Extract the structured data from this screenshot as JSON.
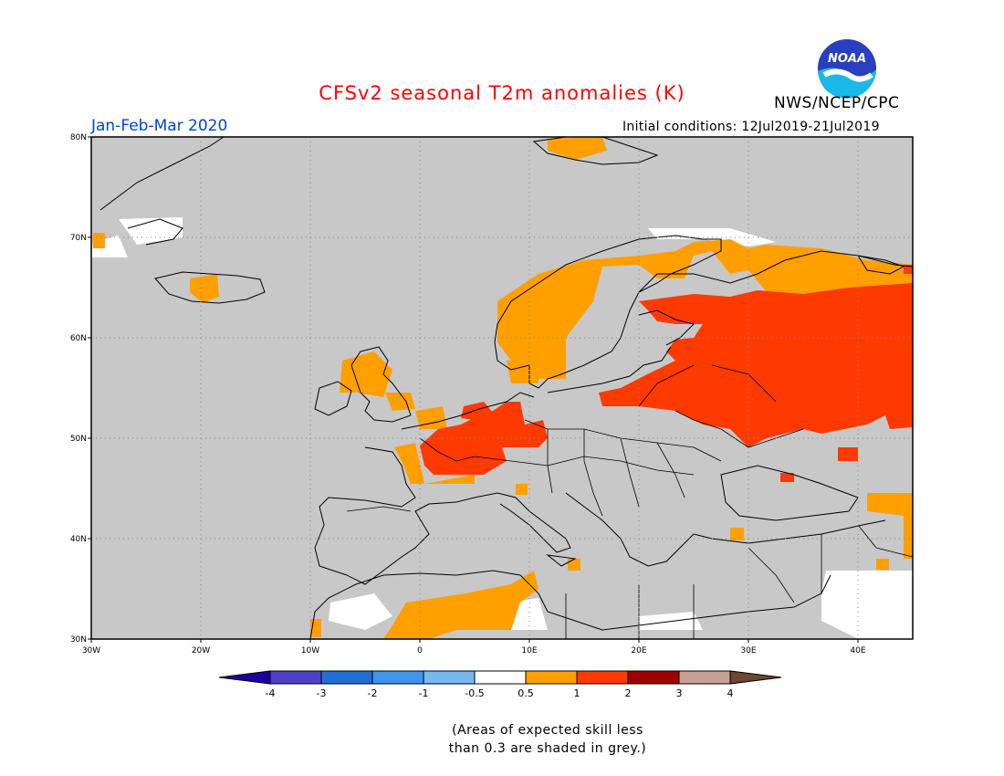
{
  "header": {
    "title": "CFSv2 seasonal T2m anomalies (K)",
    "period": "Jan-Feb-Mar 2020",
    "credit": "NWS/NCEP/CPC",
    "initial_conditions": "Initial conditions: 12Jul2019-21Jul2019",
    "logo_text": "NOAA"
  },
  "colors": {
    "title": "#ff0000",
    "period": "#0044dd",
    "no_skill_grey": "#c8c8c8",
    "sea_grey": "#c8c8c8",
    "border_line": "#000000"
  },
  "map": {
    "lon_range": [
      -30,
      45
    ],
    "lat_range": [
      30,
      80
    ],
    "gridlines": "dotted",
    "lon_ticks": [
      "30W",
      "20W",
      "10W",
      "0",
      "10E",
      "20E",
      "30E",
      "40E"
    ],
    "lat_ticks": [
      "80N",
      "70N",
      "60N",
      "50N",
      "40N",
      "30N"
    ],
    "legend": {
      "bins": [
        {
          "label": "<-4",
          "color": "#1a00a0"
        },
        {
          "label": "-4 to -3",
          "color": "#5040c8"
        },
        {
          "label": "-3 to -2",
          "color": "#1f6fd6"
        },
        {
          "label": "-2 to -1",
          "color": "#3c96ee"
        },
        {
          "label": "-1 to -0.5",
          "color": "#78b8f0"
        },
        {
          "label": "-0.5 to 0.5",
          "color": "#ffffff"
        },
        {
          "label": "0.5 to 1",
          "color": "#ff9f00"
        },
        {
          "label": "1 to 2",
          "color": "#ff3a00"
        },
        {
          "label": "2 to 3",
          "color": "#a00000"
        },
        {
          "label": "3 to 4",
          "color": "#c8a096"
        },
        {
          "label": ">4",
          "color": "#6e4632"
        }
      ],
      "tick_labels": [
        "-4",
        "-3",
        "-2",
        "-1",
        "-0.5",
        "0.5",
        "1",
        "2",
        "3",
        "4"
      ]
    },
    "anomaly_regions": [
      {
        "name": "Western Russia / Baltics",
        "category": "1 to 2"
      },
      {
        "name": "Northern Russia",
        "category": "0.5 to 1"
      },
      {
        "name": "Scandinavia",
        "category": "0.5 to 1"
      },
      {
        "name": "France / Benelux / Germany",
        "category": "1 to 2"
      },
      {
        "name": "British Isles (east)",
        "category": "0.5 to 1"
      },
      {
        "name": "North Africa",
        "category": "0.5 to 1"
      },
      {
        "name": "Iceland",
        "category": "0.5 to 1"
      }
    ]
  },
  "note": {
    "line1": "(Areas of expected skill less",
    "line2": "than 0.3 are shaded in grey.)"
  }
}
